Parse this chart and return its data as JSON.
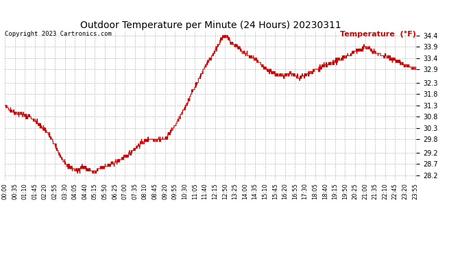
{
  "title": "Outdoor Temperature per Minute (24 Hours) 20230311",
  "copyright": "Copyright 2023 Cartronics.com",
  "legend_label": "Temperature  (°F)",
  "line_color": "#cc0000",
  "background_color": "#ffffff",
  "grid_color": "#aaaaaa",
  "title_color": "#000000",
  "copyright_color": "#000000",
  "legend_color": "#cc0000",
  "yticks": [
    28.2,
    28.7,
    29.2,
    29.8,
    30.3,
    30.8,
    31.3,
    31.8,
    32.3,
    32.9,
    33.4,
    33.9,
    34.4
  ],
  "ylim": [
    28.0,
    34.6
  ],
  "total_minutes": 1440,
  "xtick_interval_minutes": 35
}
